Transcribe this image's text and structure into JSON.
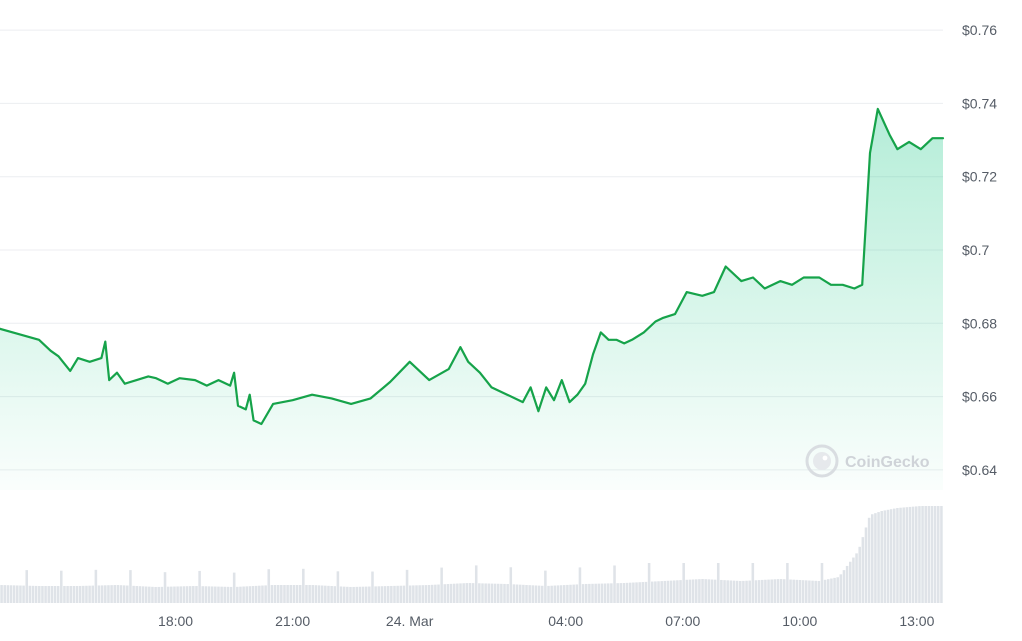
{
  "chart_data": {
    "type": "area",
    "title": "",
    "currency_prefix": "$",
    "y_ticks": [
      "$0.76",
      "$0.74",
      "$0.72",
      "$0.7",
      "$0.68",
      "$0.66",
      "$0.64"
    ],
    "y_tick_values": [
      0.76,
      0.74,
      0.72,
      0.7,
      0.68,
      0.66,
      0.64
    ],
    "ylim": [
      0.6345,
      0.7655
    ],
    "x_ticks": [
      "18:00",
      "21:00",
      "24. Mar",
      "04:00",
      "07:00",
      "10:00",
      "13:00"
    ],
    "x_tick_hours": [
      4.5,
      7.5,
      10.5,
      14.5,
      17.5,
      20.5,
      23.5
    ],
    "x_range_hours": [
      0,
      24.17
    ],
    "line_color": "#16a34a",
    "fill_color": "#16c784",
    "volume_color": "#dfe3e8",
    "grid": true,
    "watermark": "CoinGecko",
    "series": [
      {
        "x": [
          0,
          0.5,
          1,
          1.3,
          1.5,
          1.8,
          2,
          2.3,
          2.6,
          2.7,
          2.8,
          3,
          3.2,
          3.5,
          3.8,
          4,
          4.3,
          4.6,
          5,
          5.3,
          5.6,
          5.9,
          6,
          6.1,
          6.3,
          6.4,
          6.5,
          6.7,
          7,
          7.5,
          8,
          8.5,
          9,
          9.5,
          10,
          10.5,
          11,
          11.5,
          11.8,
          12,
          12.3,
          12.6,
          13,
          13.4,
          13.6,
          13.8,
          14,
          14.2,
          14.4,
          14.6,
          14.8,
          15,
          15.2,
          15.4,
          15.5,
          15.6,
          15.8,
          16,
          16.2,
          16.5,
          16.8,
          17,
          17.3,
          17.6,
          18,
          18.3,
          18.6,
          19,
          19.3,
          19.6,
          20,
          20.3,
          20.6,
          21,
          21.3,
          21.6,
          21.9,
          22.1,
          22.2,
          22.3,
          22.5,
          22.8,
          23,
          23.3,
          23.6,
          23.9,
          24.17
        ],
        "y": [
          0.6785,
          0.677,
          0.6755,
          0.6725,
          0.671,
          0.667,
          0.6705,
          0.6695,
          0.6705,
          0.675,
          0.6645,
          0.6665,
          0.6635,
          0.6645,
          0.6655,
          0.665,
          0.6635,
          0.665,
          0.6645,
          0.663,
          0.6645,
          0.663,
          0.6665,
          0.6575,
          0.6565,
          0.6605,
          0.6535,
          0.6525,
          0.658,
          0.659,
          0.6605,
          0.6595,
          0.658,
          0.6595,
          0.664,
          0.6695,
          0.6645,
          0.6675,
          0.6735,
          0.6695,
          0.6665,
          0.6625,
          0.6605,
          0.6585,
          0.6625,
          0.656,
          0.6625,
          0.659,
          0.6645,
          0.6585,
          0.6605,
          0.6635,
          0.6715,
          0.6775,
          0.6765,
          0.6755,
          0.6755,
          0.6745,
          0.6755,
          0.6775,
          0.6805,
          0.6815,
          0.6825,
          0.6885,
          0.6875,
          0.6885,
          0.6955,
          0.6915,
          0.6925,
          0.6895,
          0.6915,
          0.6905,
          0.6925,
          0.6925,
          0.6905,
          0.6905,
          0.6895,
          0.6905,
          0.7085,
          0.7265,
          0.7385,
          0.7315,
          0.7275,
          0.7295,
          0.7275,
          0.7305,
          0.7305
        ]
      }
    ],
    "volume": {
      "x": [
        0,
        1,
        2,
        3,
        4,
        5,
        6,
        7,
        8,
        9,
        10,
        11,
        12,
        13,
        14,
        15,
        16,
        17,
        18,
        19,
        20,
        21,
        21.5,
        22,
        22.3,
        22.6,
        23,
        23.3,
        23.6,
        24
      ],
      "values": [
        0.18,
        0.17,
        0.17,
        0.18,
        0.16,
        0.17,
        0.16,
        0.18,
        0.18,
        0.16,
        0.17,
        0.18,
        0.2,
        0.19,
        0.17,
        0.19,
        0.2,
        0.22,
        0.24,
        0.22,
        0.24,
        0.22,
        0.26,
        0.52,
        0.88,
        0.92,
        0.95,
        0.96,
        0.97,
        0.97
      ]
    }
  }
}
